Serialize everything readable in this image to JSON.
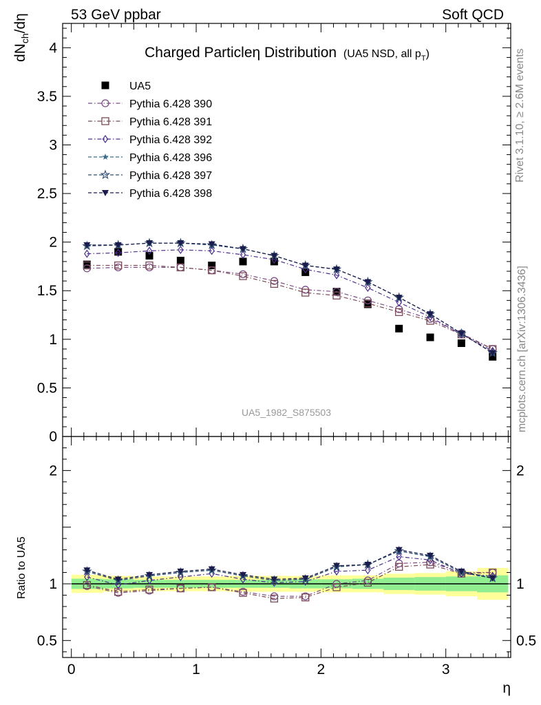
{
  "header": {
    "left": "53 GeV ppbar",
    "right": "Soft QCD"
  },
  "side_text": {
    "rivet": "Rivet 3.1.10, ≥ 2.6M events",
    "mcplots": "mcplots.cern.ch [arXiv:1306.3436]"
  },
  "chart_data": [
    {
      "type": "scatter",
      "title": "Charged Particleη Distribution",
      "subtitle": "(UA5 NSD, all pT)",
      "watermark": "UA5_1982_S875503",
      "ylabel": "dNch/dη",
      "xlim": [
        -0.07,
        3.52
      ],
      "ylim": [
        0,
        4.25
      ],
      "yticks": [
        0,
        0.5,
        1,
        1.5,
        2,
        2.5,
        3,
        3.5,
        4
      ],
      "legend_position": "top-left",
      "x": [
        0.125,
        0.375,
        0.625,
        0.875,
        1.125,
        1.375,
        1.625,
        1.875,
        2.125,
        2.375,
        2.625,
        2.875,
        3.125,
        3.375
      ],
      "series": [
        {
          "name": "UA5",
          "marker": "filled-square",
          "color": "#000000",
          "values": [
            1.77,
            1.9,
            1.86,
            1.81,
            1.76,
            1.8,
            1.8,
            1.69,
            1.49,
            1.36,
            1.11,
            1.02,
            0.96,
            0.82
          ]
        },
        {
          "name": "Pythia 6.428 390",
          "marker": "open-circle",
          "color": "#7a4c86",
          "dash": "dashdot",
          "values": [
            1.73,
            1.74,
            1.74,
            1.74,
            1.71,
            1.67,
            1.6,
            1.51,
            1.49,
            1.4,
            1.31,
            1.21,
            1.06,
            0.9
          ]
        },
        {
          "name": "Pythia 6.428 391",
          "marker": "open-square",
          "color": "#7a4a55",
          "dash": "dashdot",
          "values": [
            1.76,
            1.76,
            1.76,
            1.74,
            1.71,
            1.65,
            1.57,
            1.48,
            1.45,
            1.37,
            1.28,
            1.19,
            1.05,
            0.9
          ]
        },
        {
          "name": "Pythia 6.428 392",
          "marker": "open-diamond",
          "color": "#4b2d8c",
          "dash": "dashdot",
          "values": [
            1.88,
            1.89,
            1.91,
            1.92,
            1.91,
            1.87,
            1.82,
            1.72,
            1.66,
            1.53,
            1.38,
            1.23,
            1.05,
            0.88
          ]
        },
        {
          "name": "Pythia 6.428 396",
          "marker": "filled-star",
          "color": "#3c6a86",
          "dash": "dashed",
          "values": [
            1.96,
            1.97,
            1.99,
            1.99,
            1.97,
            1.93,
            1.86,
            1.76,
            1.72,
            1.59,
            1.43,
            1.26,
            1.06,
            0.86
          ]
        },
        {
          "name": "Pythia 6.428 397",
          "marker": "open-star",
          "color": "#2f4f72",
          "dash": "dashed",
          "values": [
            1.96,
            1.97,
            1.99,
            1.99,
            1.97,
            1.93,
            1.86,
            1.76,
            1.72,
            1.59,
            1.43,
            1.26,
            1.06,
            0.86
          ]
        },
        {
          "name": "Pythia 6.428 398",
          "marker": "filled-triangle-down",
          "color": "#1c1c4c",
          "dash": "dashed",
          "values": [
            1.97,
            1.97,
            1.99,
            1.99,
            1.98,
            1.93,
            1.86,
            1.76,
            1.72,
            1.59,
            1.43,
            1.26,
            1.06,
            0.86
          ]
        }
      ]
    },
    {
      "type": "scatter",
      "ylabel": "Ratio to UA5",
      "xlabel": "η",
      "xlim": [
        -0.07,
        3.52
      ],
      "ylim": [
        0.35,
        2.3
      ],
      "yticks": [
        0.5,
        1,
        2
      ],
      "xticks": [
        0,
        1,
        2,
        3
      ],
      "x": [
        0.125,
        0.375,
        0.625,
        0.875,
        1.125,
        1.375,
        1.625,
        1.875,
        2.125,
        2.375,
        2.625,
        2.875,
        3.125,
        3.375
      ],
      "band_inner": {
        "color": "#90ee90",
        "half_width": [
          0.045,
          0.04,
          0.035,
          0.035,
          0.035,
          0.035,
          0.035,
          0.04,
          0.04,
          0.045,
          0.055,
          0.06,
          0.065,
          0.075
        ]
      },
      "band_outer": {
        "color": "#ffff99",
        "half_width": [
          0.08,
          0.07,
          0.065,
          0.065,
          0.065,
          0.07,
          0.07,
          0.07,
          0.075,
          0.075,
          0.09,
          0.095,
          0.11,
          0.14
        ]
      },
      "series": [
        {
          "name": "Pythia 6.428 390",
          "values": [
            0.98,
            0.92,
            0.94,
            0.96,
            0.97,
            0.93,
            0.89,
            0.89,
            1.0,
            1.03,
            1.18,
            1.19,
            1.1,
            1.1
          ]
        },
        {
          "name": "Pythia 6.428 391",
          "values": [
            0.99,
            0.93,
            0.95,
            0.96,
            0.97,
            0.92,
            0.87,
            0.88,
            0.97,
            1.01,
            1.15,
            1.17,
            1.09,
            1.1
          ]
        },
        {
          "name": "Pythia 6.428 392",
          "values": [
            1.06,
            0.99,
            1.03,
            1.06,
            1.09,
            1.04,
            1.01,
            1.02,
            1.11,
            1.12,
            1.24,
            1.21,
            1.09,
            1.07
          ]
        },
        {
          "name": "Pythia 6.428 396",
          "values": [
            1.11,
            1.03,
            1.07,
            1.1,
            1.12,
            1.07,
            1.03,
            1.04,
            1.15,
            1.17,
            1.29,
            1.24,
            1.1,
            1.05
          ]
        },
        {
          "name": "Pythia 6.428 397",
          "values": [
            1.11,
            1.03,
            1.07,
            1.1,
            1.12,
            1.07,
            1.03,
            1.04,
            1.15,
            1.17,
            1.29,
            1.24,
            1.1,
            1.05
          ]
        },
        {
          "name": "Pythia 6.428 398",
          "values": [
            1.12,
            1.04,
            1.08,
            1.11,
            1.13,
            1.08,
            1.04,
            1.05,
            1.16,
            1.17,
            1.3,
            1.25,
            1.11,
            1.05
          ]
        }
      ]
    }
  ]
}
